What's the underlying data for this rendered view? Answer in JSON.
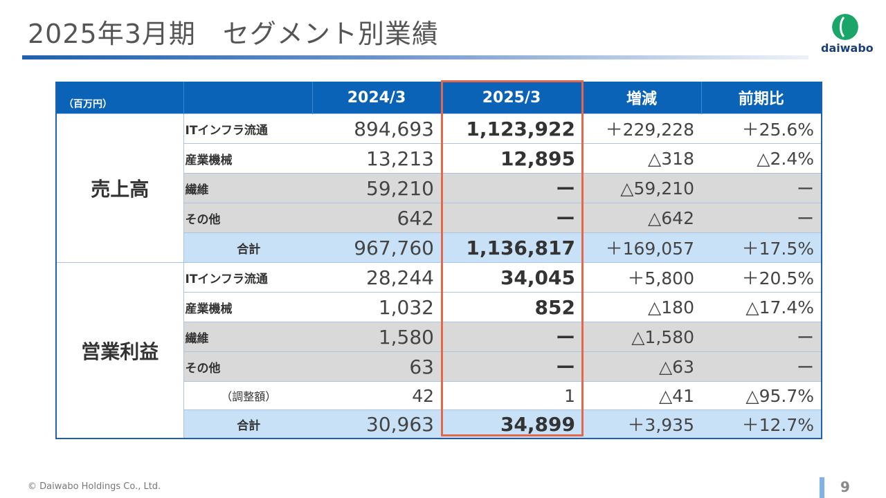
{
  "title": "2025年3月期　セグメント別業績",
  "logo": {
    "text": "daiwabo",
    "color": "#1aa56a"
  },
  "table": {
    "unit": "（百万円）",
    "headers": [
      "2024/3",
      "2025/3",
      "増減",
      "前期比"
    ],
    "sales": {
      "label": "売上高",
      "rows": [
        {
          "label": "ITインフラ流通",
          "y2024": "894,693",
          "y2025": "1,123,922",
          "change": "＋229,228",
          "ratio": "＋25.6%"
        },
        {
          "label": "産業機械",
          "y2024": "13,213",
          "y2025": "12,895",
          "change": "△318",
          "ratio": "△2.4%"
        },
        {
          "label": "繊維",
          "y2024": "59,210",
          "y2025": "ー",
          "change": "△59,210",
          "ratio": "ー"
        },
        {
          "label": "その他",
          "y2024": "642",
          "y2025": "ー",
          "change": "△642",
          "ratio": "ー"
        },
        {
          "label": "合計",
          "y2024": "967,760",
          "y2025": "1,136,817",
          "change": "＋169,057",
          "ratio": "＋17.5%"
        }
      ]
    },
    "operating_income": {
      "label": "営業利益",
      "rows": [
        {
          "label": "ITインフラ流通",
          "y2024": "28,244",
          "y2025": "34,045",
          "change": "＋5,800",
          "ratio": "＋20.5%"
        },
        {
          "label": "産業機械",
          "y2024": "1,032",
          "y2025": "852",
          "change": "△180",
          "ratio": "△17.4%"
        },
        {
          "label": "繊維",
          "y2024": "1,580",
          "y2025": "ー",
          "change": "△1,580",
          "ratio": "ー"
        },
        {
          "label": "その他",
          "y2024": "63",
          "y2025": "ー",
          "change": "△63",
          "ratio": "ー"
        },
        {
          "label": "（調整額）",
          "y2024": "42",
          "y2025": "1",
          "change": "△41",
          "ratio": "△95.7%"
        },
        {
          "label": "合計",
          "y2024": "30,963",
          "y2025": "34,899",
          "change": "＋3,935",
          "ratio": "＋12.7%"
        }
      ]
    }
  },
  "highlight_color": "#e2674b",
  "footer": {
    "copyright": "© Daiwabo Holdings Co., Ltd.",
    "page": "9"
  }
}
